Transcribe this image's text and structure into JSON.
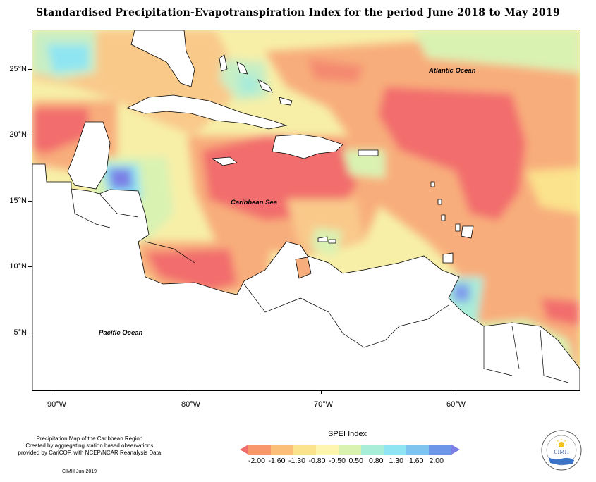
{
  "title": "Standardised Precipitation-Evapotranspiration Index for the period June 2018 to May 2019",
  "lat_labels": [
    "25°N",
    "20°N",
    "15°N",
    "10°N",
    "5°N"
  ],
  "lon_labels": [
    "90°W",
    "80°W",
    "70°W",
    "60°W"
  ],
  "ocean_labels": {
    "atlantic": "Atlantic Ocean",
    "caribbean": "Caribbean Sea",
    "pacific": "Pacific Ocean"
  },
  "credits": {
    "line1": "Precipitation Map of the Caribbean Region.",
    "line2": "Created by aggregating station based observations,",
    "line3": "provided by CariCOF, with NCEP/NCAR Reanalysis Data.",
    "date": "CIMH  Jun-2019"
  },
  "legend": {
    "title": "SPEI Index",
    "values": [
      "-2.00",
      "-1.60",
      "-1.30",
      "-0.80",
      "-0.50",
      "0.50",
      "0.80",
      "1.30",
      "1.60",
      "2.00"
    ],
    "colors": [
      "#f26d6d",
      "#f7976b",
      "#fac07a",
      "#fbe28c",
      "#fdf5b0",
      "#d9f2b2",
      "#a9ecd8",
      "#8fe5f2",
      "#7ec4ee",
      "#6d95e8",
      "#7b7fe6"
    ]
  },
  "logo": {
    "text": "CIMH",
    "ring_text": "Caribbean Institute for Meteorology and Hydrology"
  }
}
